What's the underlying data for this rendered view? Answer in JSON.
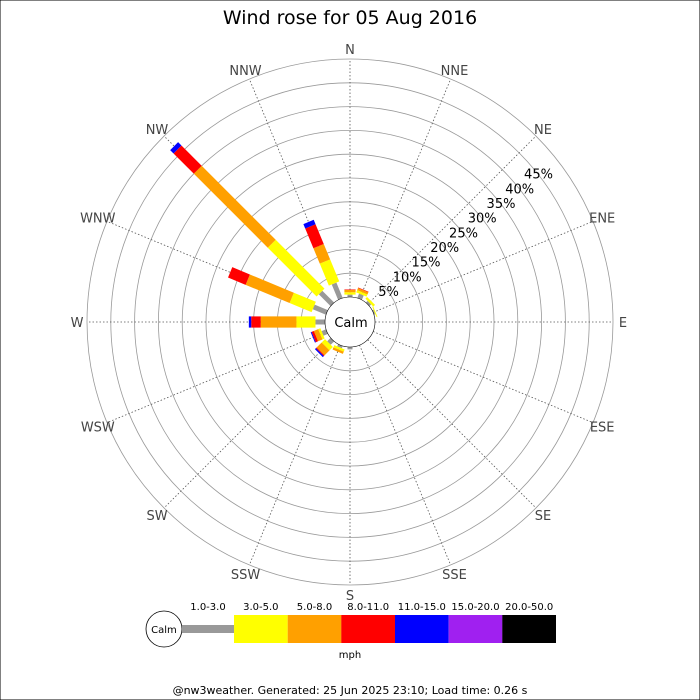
{
  "chart_data": {
    "type": "wind-rose",
    "title": "Wind rose for 05 Aug 2016",
    "directions": [
      "N",
      "NNE",
      "NE",
      "ENE",
      "E",
      "ESE",
      "SE",
      "SSE",
      "S",
      "SSW",
      "SW",
      "WSW",
      "W",
      "WNW",
      "NW",
      "NNW"
    ],
    "radial_ticks": [
      "5%",
      "10%",
      "15%",
      "20%",
      "25%",
      "30%",
      "35%",
      "40%",
      "45%"
    ],
    "radial_values": [
      5,
      10,
      15,
      20,
      25,
      30,
      35,
      40,
      45
    ],
    "rmax": 50,
    "calm_label": "Calm",
    "unit": "mph",
    "bins": [
      {
        "name": "1.0-3.0",
        "color": "#999999"
      },
      {
        "name": "3.0-5.0",
        "color": "#ffff00"
      },
      {
        "name": "5.0-8.0",
        "color": "#ffa000"
      },
      {
        "name": "8.0-11.0",
        "color": "#ff0000"
      },
      {
        "name": "11.0-15.0",
        "color": "#0000ff"
      },
      {
        "name": "15.0-20.0",
        "color": "#a020f0"
      },
      {
        "name": "20.0-50.0",
        "color": "#000000"
      }
    ],
    "series": [
      {
        "direction": "N",
        "cumulative": [
          0.5,
          1.0,
          1.5,
          1.6,
          1.6,
          1.6,
          1.6
        ]
      },
      {
        "direction": "NNE",
        "cumulative": [
          1.0,
          1.5,
          2.0,
          2.1,
          2.1,
          2.1,
          2.1
        ]
      },
      {
        "direction": "NE",
        "cumulative": [
          0.5,
          1.0,
          1.0,
          1.0,
          1.0,
          1.0,
          1.0
        ]
      },
      {
        "direction": "ENE",
        "cumulative": [
          0.3,
          0.5,
          0.5,
          0.5,
          0.5,
          0.5,
          0.5
        ]
      },
      {
        "direction": "E",
        "cumulative": [
          0.0,
          0.0,
          0.0,
          0.0,
          0.0,
          0.0,
          0.0
        ]
      },
      {
        "direction": "ESE",
        "cumulative": [
          0.0,
          0.0,
          0.0,
          0.0,
          0.0,
          0.0,
          0.0
        ]
      },
      {
        "direction": "SE",
        "cumulative": [
          0.0,
          0.0,
          0.0,
          0.0,
          0.0,
          0.0,
          0.0
        ]
      },
      {
        "direction": "SSE",
        "cumulative": [
          0.0,
          0.0,
          0.0,
          0.0,
          0.0,
          0.0,
          0.0
        ]
      },
      {
        "direction": "S",
        "cumulative": [
          0.5,
          0.5,
          0.5,
          0.5,
          0.5,
          0.5,
          0.5
        ]
      },
      {
        "direction": "SSW",
        "cumulative": [
          0.5,
          1.0,
          1.5,
          1.5,
          1.5,
          1.5,
          1.5
        ]
      },
      {
        "direction": "SW",
        "cumulative": [
          1.0,
          2.0,
          3.5,
          3.7,
          4.0,
          4.0,
          4.0
        ]
      },
      {
        "direction": "WSW",
        "cumulative": [
          1.0,
          1.5,
          2.5,
          3.0,
          3.2,
          3.2,
          3.2
        ]
      },
      {
        "direction": "W",
        "cumulative": [
          2.0,
          6.0,
          13.5,
          15.5,
          16.0,
          16.0,
          16.0
        ]
      },
      {
        "direction": "WNW",
        "cumulative": [
          3.0,
          8.0,
          18.0,
          22.0,
          22.0,
          22.0,
          22.0
        ]
      },
      {
        "direction": "NW",
        "cumulative": [
          3.5,
          18.0,
          40.0,
          46.0,
          47.0,
          47.0,
          47.0
        ]
      },
      {
        "direction": "NNW",
        "cumulative": [
          3.5,
          8.5,
          12.0,
          16.5,
          17.5,
          17.5,
          17.5
        ]
      }
    ]
  },
  "footer": "@nw3weather. Generated: 25 Jun 2025 23:10; Load time: 0.26 s"
}
